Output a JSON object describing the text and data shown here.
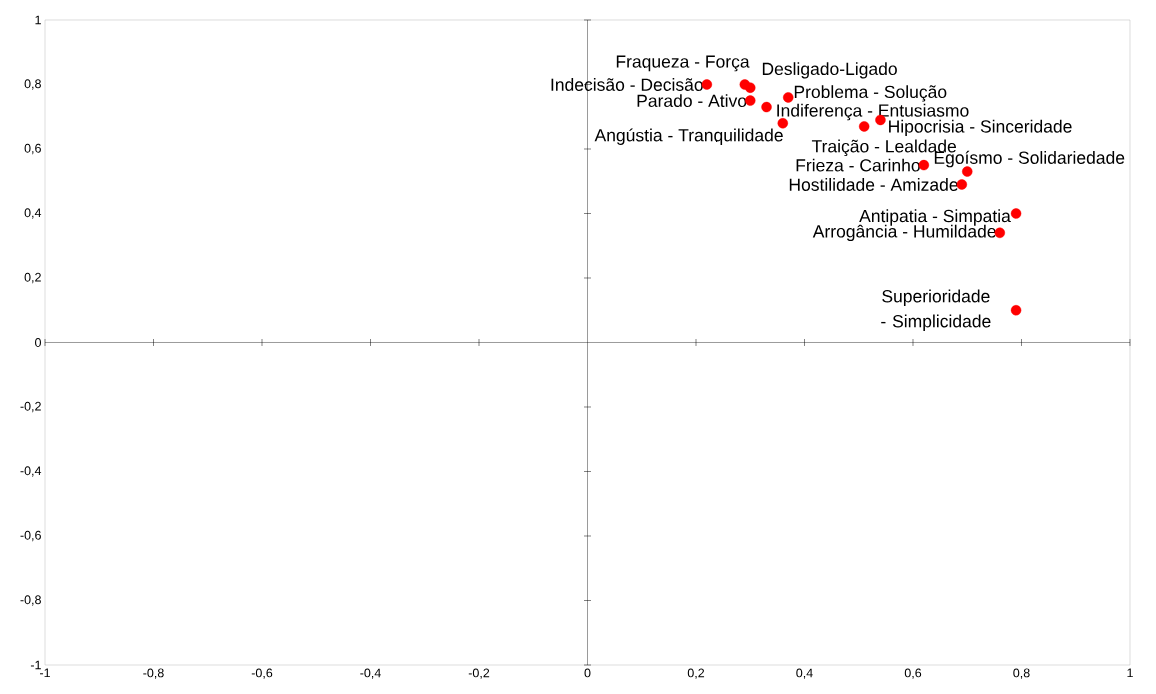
{
  "chart_data": {
    "type": "scatter",
    "color": "#ff0000",
    "x": [
      0.22,
      0.29,
      0.3,
      0.3,
      0.33,
      0.37,
      0.36,
      0.51,
      0.54,
      0.62,
      0.7,
      0.69,
      0.79,
      0.76,
      0.79
    ],
    "values": [
      0.8,
      0.8,
      0.79,
      0.75,
      0.73,
      0.76,
      0.68,
      0.67,
      0.69,
      0.55,
      0.53,
      0.49,
      0.4,
      0.34,
      0.1
    ],
    "xlim": [
      -1,
      1
    ],
    "ylim": [
      -1,
      1
    ],
    "xticks": [
      -1,
      {
        "value": -0.8,
        "label": "-0,8"
      },
      {
        "value": -0.6,
        "label": "-0,6"
      },
      {
        "value": -0.4,
        "label": "-0,4"
      },
      {
        "value": -0.2,
        "label": "-0,2"
      },
      0,
      {
        "value": 0.2,
        "label": "0,2"
      },
      {
        "value": 0.4,
        "label": "0,4"
      },
      {
        "value": 0.6,
        "label": "0,6"
      },
      {
        "value": 0.8,
        "label": "0,8"
      },
      1
    ],
    "yticks": [
      -1,
      {
        "value": -0.8,
        "label": "-0,8"
      },
      {
        "value": -0.6,
        "label": "-0,6"
      },
      {
        "value": -0.4,
        "label": "-0,4"
      },
      {
        "value": -0.2,
        "label": "-0,2"
      },
      0,
      {
        "value": 0.2,
        "label": "0,2"
      },
      {
        "value": 0.4,
        "label": "0,4"
      },
      {
        "value": 0.6,
        "label": "0,6"
      },
      {
        "value": 0.8,
        "label": "0,8"
      },
      1
    ],
    "annotations": [
      {
        "text": "Indecisão - Decisão",
        "x": 0.22,
        "y": 0.8
      },
      {
        "text": "Fraqueza - Força",
        "x": 0.29,
        "y": 0.8
      },
      {
        "text": "Desligado-Ligado",
        "x": 0.3,
        "y": 0.79
      },
      {
        "text": "Parado - Ativo",
        "x": 0.3,
        "y": 0.75
      },
      {
        "text": "Indiferença - Entusiasmo",
        "x": 0.33,
        "y": 0.73
      },
      {
        "text": "Problema - Solução",
        "x": 0.37,
        "y": 0.76
      },
      {
        "text": "Angústia - Tranquilidade",
        "x": 0.36,
        "y": 0.68
      },
      {
        "text": "Traição - Lealdade",
        "x": 0.51,
        "y": 0.67
      },
      {
        "text": "Hipocrisia - Sinceridade",
        "x": 0.54,
        "y": 0.69
      },
      {
        "text": "Frieza - Carinho",
        "x": 0.62,
        "y": 0.55
      },
      {
        "text": "Egoísmo - Solidariedade",
        "x": 0.7,
        "y": 0.53
      },
      {
        "text": "Hostilidade - Amizade",
        "x": 0.69,
        "y": 0.49
      },
      {
        "text": "Antipatia - Simpatia",
        "x": 0.79,
        "y": 0.4
      },
      {
        "text": "Arrogância - Humildade",
        "x": 0.76,
        "y": 0.34
      },
      {
        "text": "Superioridade - Simplicidade",
        "x": 0.79,
        "y": 0.1
      }
    ]
  }
}
